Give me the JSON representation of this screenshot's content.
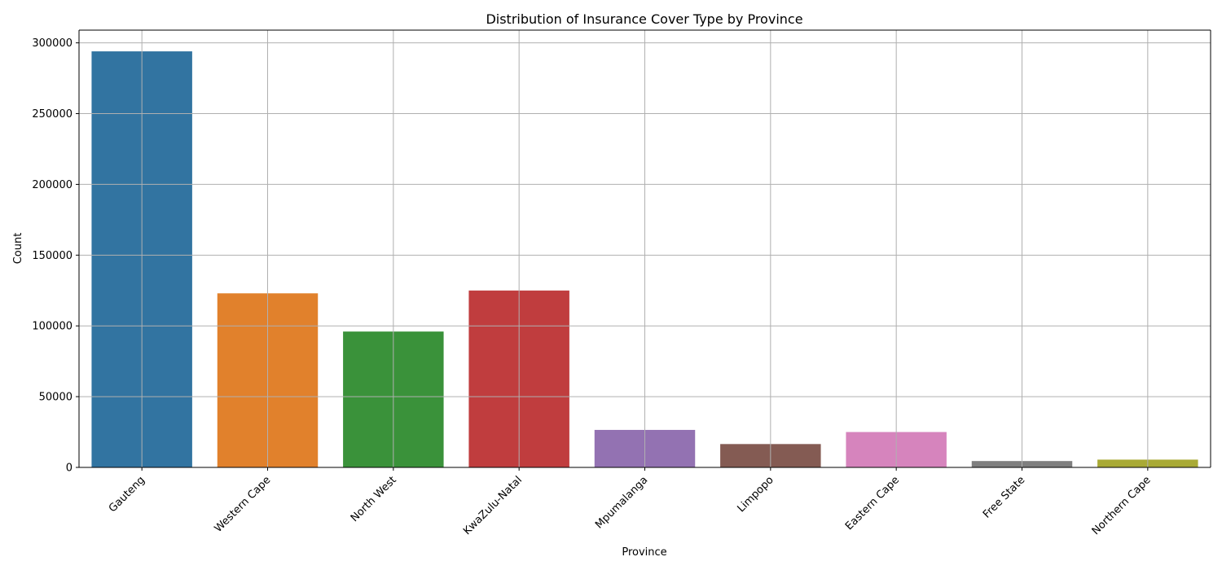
{
  "chart_data": {
    "type": "bar",
    "title": "Distribution of Insurance Cover Type by Province",
    "xlabel": "Province",
    "ylabel": "Count",
    "categories": [
      "Gauteng",
      "Western Cape",
      "North West",
      "KwaZulu-Natal",
      "Mpumalanga",
      "Limpopo",
      "Eastern Cape",
      "Free State",
      "Northern Cape"
    ],
    "values": [
      294000,
      123000,
      96000,
      125000,
      26500,
      16500,
      25000,
      4500,
      5500
    ],
    "colors": [
      "#3274a1",
      "#e1812c",
      "#3a923a",
      "#c03d3e",
      "#9372b2",
      "#845b53",
      "#d684bd",
      "#7f7f7f",
      "#a9aa35"
    ],
    "ylim": [
      0,
      309000
    ],
    "yticks": [
      0,
      50000,
      100000,
      150000,
      200000,
      250000,
      300000
    ],
    "ytick_labels": [
      "0",
      "50000",
      "100000",
      "150000",
      "200000",
      "250000",
      "300000"
    ],
    "grid": true,
    "legend": "none"
  }
}
